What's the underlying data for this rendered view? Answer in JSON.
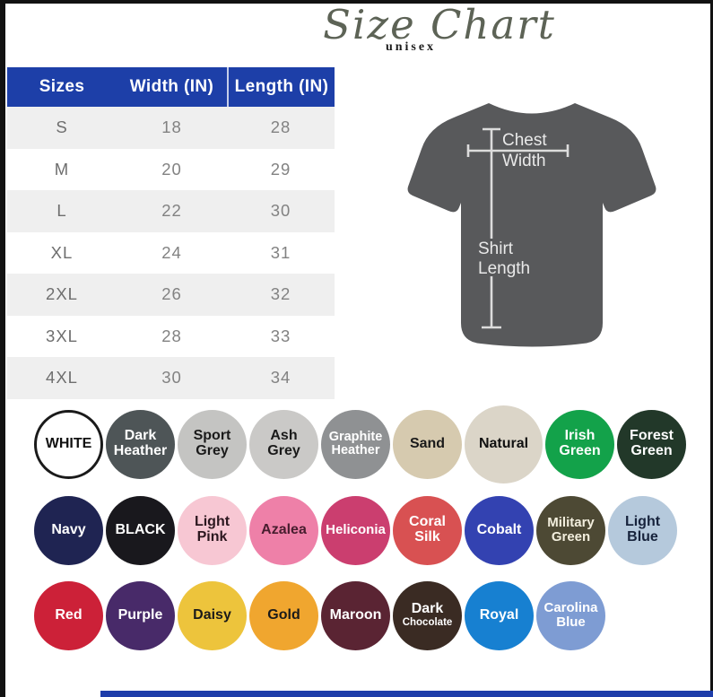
{
  "title": {
    "main": "Size Chart",
    "sub": "unisex"
  },
  "accents": {
    "table_header_blue": "#1d3fa8",
    "table_alt_row": "#efefef",
    "bottom_bar_blue": "#1e3daa",
    "frame_black": "#121212",
    "title_green_grey": "#5d6356",
    "shirt_grey": "#58595b"
  },
  "table": {
    "headers": [
      "Sizes",
      "Width (IN)",
      "Length (IN)"
    ],
    "rows": [
      [
        "S",
        "18",
        "28"
      ],
      [
        "M",
        "20",
        "29"
      ],
      [
        "L",
        "22",
        "30"
      ],
      [
        "XL",
        "24",
        "31"
      ],
      [
        "2XL",
        "26",
        "32"
      ],
      [
        "3XL",
        "28",
        "33"
      ],
      [
        "4XL",
        "30",
        "34"
      ]
    ]
  },
  "diagram": {
    "chest_width_label": "Chest Width",
    "shirt_length_label": "Shirt Length"
  },
  "swatches": {
    "rows": [
      [
        {
          "name": "White",
          "label": "WHITE",
          "bg": "#ffffff",
          "fg": "#111111",
          "border": "#1a1a1a"
        },
        {
          "name": "Dark Heather",
          "label": "Dark Heather",
          "bg": "#4e5557",
          "fg": "#ffffff"
        },
        {
          "name": "Sport Grey",
          "label": "Sport Grey",
          "bg": "#c4c4c2",
          "fg": "#1a1a1a"
        },
        {
          "name": "Ash Grey",
          "label": "Ash Grey",
          "bg": "#cac9c7",
          "fg": "#1a1a1a"
        },
        {
          "name": "Graphite Heather",
          "label": "Graphite Heather",
          "bg": "#8f9193",
          "fg": "#ffffff",
          "fs": 14.5
        },
        {
          "name": "Sand",
          "label": "Sand",
          "bg": "#d6caaf",
          "fg": "#1a1a1a"
        },
        {
          "name": "Natural",
          "label": "Natural",
          "bg": "#dbd5c8",
          "fg": "#111111",
          "size": 87
        },
        {
          "name": "Irish Green",
          "label": "Irish Green",
          "bg": "#13a24a",
          "fg": "#ffffff"
        },
        {
          "name": "Forest Green",
          "label": "Forest Green",
          "bg": "#223829",
          "fg": "#ffffff"
        }
      ],
      [
        {
          "name": "Navy",
          "label": "Navy",
          "bg": "#1f2452",
          "fg": "#ffffff"
        },
        {
          "name": "Black",
          "label": "BLACK",
          "bg": "#19181d",
          "fg": "#ffffff"
        },
        {
          "name": "Light Pink",
          "label": "Light Pink",
          "bg": "#f7c7d3",
          "fg": "#2c171f"
        },
        {
          "name": "Azalea",
          "label": "Azalea",
          "bg": "#ee80a8",
          "fg": "#471d2e"
        },
        {
          "name": "Heliconia",
          "label": "Heliconia",
          "bg": "#cb3e6f",
          "fg": "#ffffff",
          "fs": 15
        },
        {
          "name": "Coral Silk",
          "label": "Coral Silk",
          "bg": "#d85152",
          "fg": "#ffffff"
        },
        {
          "name": "Cobalt",
          "label": "Cobalt",
          "bg": "#3342b1",
          "fg": "#ffffff"
        },
        {
          "name": "Military Green",
          "label": "Military Green",
          "bg": "#4d4934",
          "fg": "#f2eedd",
          "fs": 15
        },
        {
          "name": "Light Blue",
          "label": "Light Blue",
          "bg": "#b5c9dc",
          "fg": "#17233c"
        }
      ],
      [
        {
          "name": "Red",
          "label": "Red",
          "bg": "#cc2138",
          "fg": "#ffffff"
        },
        {
          "name": "Purple",
          "label": "Purple",
          "bg": "#482a69",
          "fg": "#ffffff"
        },
        {
          "name": "Daisy",
          "label": "Daisy",
          "bg": "#edc43c",
          "fg": "#1a1a1a"
        },
        {
          "name": "Gold",
          "label": "Gold",
          "bg": "#f0a62f",
          "fg": "#1a1a1a"
        },
        {
          "name": "Maroon",
          "label": "Maroon",
          "bg": "#5a2433",
          "fg": "#ffffff"
        },
        {
          "name": "Dark Chocolate",
          "label": "Dark",
          "sub": "Chocolate",
          "bg": "#3a2b23",
          "fg": "#ffffff"
        },
        {
          "name": "Royal",
          "label": "Royal",
          "bg": "#1780d1",
          "fg": "#ffffff"
        },
        {
          "name": "Carolina Blue",
          "label": "Carolina Blue",
          "bg": "#7e9cd3",
          "fg": "#ffffff",
          "fs": 15
        }
      ]
    ]
  },
  "chart_data": {
    "type": "table",
    "title": "Size Chart (unisex)",
    "columns": [
      "Sizes",
      "Width (IN)",
      "Length (IN)"
    ],
    "rows": [
      [
        "S",
        18,
        28
      ],
      [
        "M",
        20,
        29
      ],
      [
        "L",
        22,
        30
      ],
      [
        "XL",
        24,
        31
      ],
      [
        "2XL",
        26,
        32
      ],
      [
        "3XL",
        28,
        33
      ],
      [
        "4XL",
        30,
        34
      ]
    ],
    "color_options": [
      "White",
      "Dark Heather",
      "Sport Grey",
      "Ash Grey",
      "Graphite Heather",
      "Sand",
      "Natural",
      "Irish Green",
      "Forest Green",
      "Navy",
      "Black",
      "Light Pink",
      "Azalea",
      "Heliconia",
      "Coral Silk",
      "Cobalt",
      "Military Green",
      "Light Blue",
      "Red",
      "Purple",
      "Daisy",
      "Gold",
      "Maroon",
      "Dark Chocolate",
      "Royal",
      "Carolina Blue"
    ]
  }
}
